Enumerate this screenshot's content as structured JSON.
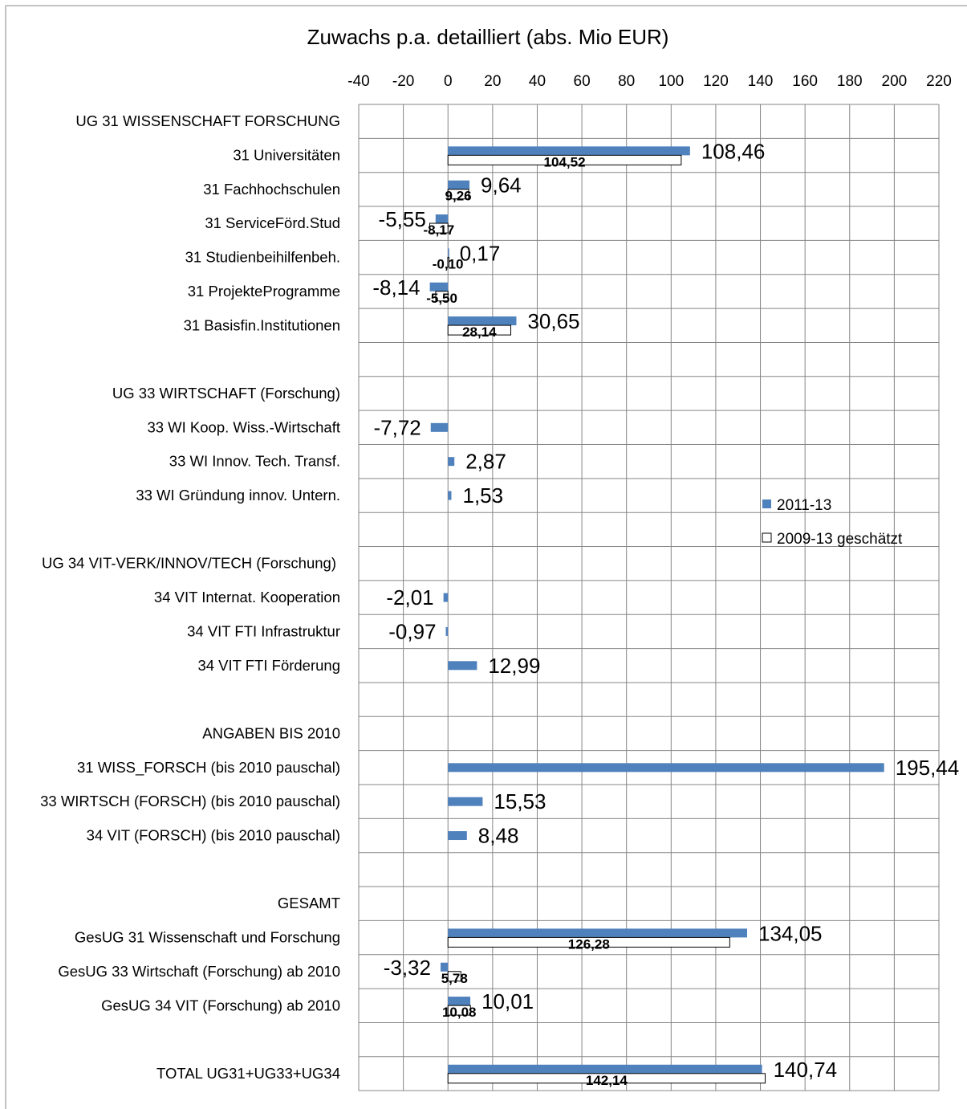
{
  "chart_data": {
    "type": "bar",
    "orientation": "horizontal",
    "title": "Zuwachs p.a. detailliert (abs. Mio EUR)",
    "xlim": [
      -40,
      220
    ],
    "x_ticks": [
      "-40",
      "-20",
      "0",
      "20",
      "40",
      "60",
      "80",
      "100",
      "120",
      "140",
      "160",
      "180",
      "200",
      "220"
    ],
    "grid": true,
    "legend_position": "right",
    "colors": {
      "series_2011_13": "#4f81bd",
      "series_2009_13": "#ffffff",
      "series_2009_13_border": "#000000",
      "grid": "#868686"
    },
    "categories": [
      "UG 31 WISSENSCHAFT FORSCHUNG",
      "31 Universitäten",
      "31 Fachhochschulen",
      "31 ServiceFörd.Stud",
      "31 Studienbeihilfenbeh.",
      "31 ProjekteProgramme",
      "31 Basisfin.Institutionen",
      "",
      "UG 33 WIRTSCHAFT (Forschung)",
      "33 WI Koop. Wiss.-Wirtschaft",
      "33 WI Innov. Tech. Transf.",
      "33 WI Gründung innov. Untern.",
      "",
      "UG 34 VIT-VERK/INNOV/TECH (Forschung)",
      "34 VIT Internat. Kooperation",
      "34 VIT FTI Infrastruktur",
      "34 VIT FTI Förderung",
      "",
      "ANGABEN BIS 2010",
      "31 WISS_FORSCH (bis 2010 pauschal)",
      "33 WIRTSCH (FORSCH) (bis 2010 pauschal)",
      "34 VIT (FORSCH) (bis 2010 pauschal)",
      "",
      "GESAMT",
      "GesUG 31 Wissenschaft und Forschung",
      "GesUG 33 Wirtschaft (Forschung) ab 2010",
      "GesUG 34 VIT (Forschung) ab 2010",
      "",
      "TOTAL UG31+UG33+UG34"
    ],
    "series": [
      {
        "name": "2011-13",
        "values": [
          null,
          108.46,
          9.64,
          -5.55,
          0.17,
          -8.14,
          30.65,
          null,
          null,
          -7.72,
          2.87,
          1.53,
          null,
          null,
          -2.01,
          -0.97,
          12.99,
          null,
          null,
          195.44,
          15.53,
          8.48,
          null,
          null,
          134.05,
          -3.32,
          10.01,
          null,
          140.74
        ],
        "labels": [
          "",
          "108,46",
          "9,64",
          "-5,55",
          "0,17",
          "-8,14",
          "30,65",
          "",
          "",
          "-7,72",
          "2,87",
          "1,53",
          "",
          "",
          "-2,01",
          "-0,97",
          "12,99",
          "",
          "",
          "195,44",
          "15,53",
          "8,48",
          "",
          "",
          "134,05",
          "-3,32",
          "10,01",
          "",
          "140,74"
        ]
      },
      {
        "name": "2009-13 geschätzt",
        "values": [
          null,
          104.52,
          9.26,
          -8.17,
          -0.1,
          -5.5,
          28.14,
          null,
          null,
          null,
          null,
          null,
          null,
          null,
          null,
          null,
          null,
          null,
          null,
          null,
          null,
          null,
          null,
          null,
          126.28,
          5.78,
          10.08,
          null,
          142.14
        ],
        "labels": [
          "",
          "104,52",
          "9,26",
          "-8,17",
          "-0,10",
          "-5,50",
          "28,14",
          "",
          "",
          "",
          "",
          "",
          "",
          "",
          "",
          "",
          "",
          "",
          "",
          "",
          "",
          "",
          "",
          "",
          "126,28",
          "5,78",
          "10,08",
          "",
          "142,14"
        ]
      }
    ]
  }
}
